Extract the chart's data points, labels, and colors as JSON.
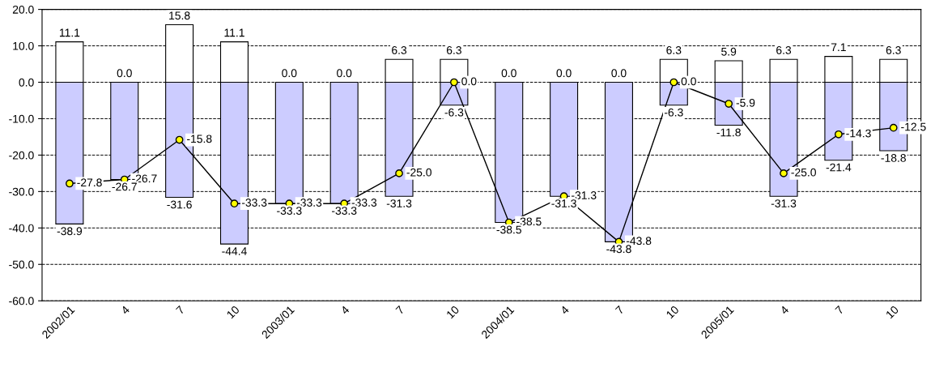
{
  "chart_data": {
    "type": "bar",
    "stacked": true,
    "categories": [
      "2002/01",
      "4",
      "7",
      "10",
      "2003/01",
      "4",
      "7",
      "10",
      "2004/01",
      "4",
      "7",
      "10",
      "2005/01",
      "4",
      "7",
      "10"
    ],
    "series": [
      {
        "color": "#ffffff",
        "values": [
          11.1,
          0.0,
          15.8,
          11.1,
          0.0,
          0.0,
          6.3,
          6.3,
          0.0,
          0.0,
          0.0,
          6.3,
          5.9,
          6.3,
          7.1,
          6.3
        ],
        "value_labels": [
          "11.1",
          "0.0",
          "15.8",
          "11.1",
          "0.0",
          "0.0",
          "6.3",
          "6.3",
          "0.0",
          "0.0",
          "0.0",
          "6.3",
          "5.9",
          "6.3",
          "7.1",
          "6.3"
        ]
      },
      {
        "color": "#ccccff",
        "values": [
          -38.9,
          -26.7,
          -31.6,
          -44.4,
          -33.3,
          -33.3,
          -31.3,
          -6.3,
          -38.5,
          -31.3,
          -43.8,
          -6.3,
          -11.8,
          -31.3,
          -21.4,
          -18.8
        ],
        "value_labels": [
          "-38.9",
          "-26.7",
          "-31.6",
          "-44.4",
          "-33.3",
          "-33.3",
          "-31.3",
          "-6.3",
          "-38.5",
          "-31.3",
          "-43.8",
          "-6.3",
          "-11.8",
          "-31.3",
          "-21.4",
          "-18.8"
        ]
      },
      {
        "type": "line",
        "color": "#ffff00",
        "marker": "circle",
        "values": [
          -27.8,
          -26.7,
          -15.8,
          -33.3,
          -33.3,
          -33.3,
          -25.0,
          0.0,
          -38.5,
          -31.3,
          -43.8,
          0.0,
          -5.9,
          -25.0,
          -14.3,
          -12.5
        ],
        "value_labels": [
          "-27.8",
          "-26.7",
          "-15.8",
          "-33.3",
          "-33.3",
          "-33.3",
          "-25.0",
          "0.0",
          "-38.5",
          "-31.3",
          "-43.8",
          "0.0",
          "-5.9",
          "-25.0",
          "-14.3",
          "-12.5"
        ]
      }
    ],
    "ylim": [
      -60,
      20
    ],
    "yticks": [
      {
        "value": -60,
        "label": "-60.0"
      },
      {
        "value": -50,
        "label": "-50.0"
      },
      {
        "value": -40,
        "label": "-40.0"
      },
      {
        "value": -30,
        "label": "-30.0"
      },
      {
        "value": -20,
        "label": "-20.0"
      },
      {
        "value": -10,
        "label": "-10.0"
      },
      {
        "value": 0,
        "label": "0.0"
      },
      {
        "value": 10,
        "label": "10.0"
      },
      {
        "value": 20,
        "label": "20.0"
      }
    ],
    "grid": "y"
  }
}
